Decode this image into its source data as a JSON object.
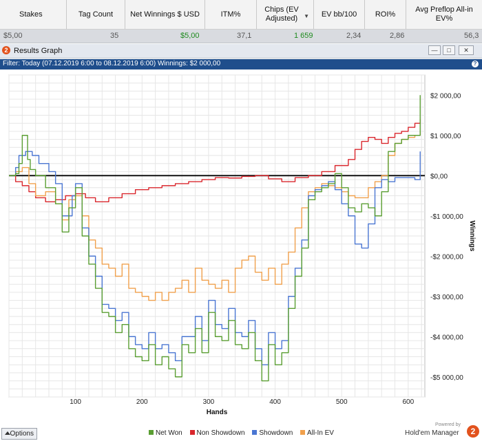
{
  "table": {
    "headers": [
      "Stakes",
      "Tag Count",
      "Net Winnings $ USD",
      "ITM%",
      "Chips (EV Adjusted)",
      "EV bb/100",
      "ROI%",
      "Avg Preflop All-in EV%"
    ],
    "values": [
      "$5,00",
      "35",
      "$5,00",
      "37,1",
      "1 659",
      "2,34",
      "2,86",
      "56,3"
    ]
  },
  "window": {
    "title": "Results Graph",
    "filter_text": "Filter: Today (07.12.2019 6:00 to 08.12.2019 6:00)  Winnings: $2 000,00"
  },
  "bottom": {
    "options_label": "Options",
    "powered_by": "Powered by",
    "brand": "Hold'em Manager"
  },
  "colors": {
    "net_won": "#5a9e32",
    "non_showdown": "#d9262c",
    "showdown": "#4a76d2",
    "all_in_ev": "#f0a04c",
    "filter_bar": "#1f4e8c"
  },
  "chart_data": {
    "type": "line",
    "xlabel": "Hands",
    "ylabel": "Winnings",
    "xlim": [
      0,
      625
    ],
    "ylim": [
      -5500,
      2500
    ],
    "xticks": [
      100,
      200,
      300,
      400,
      500,
      600
    ],
    "yticks": [
      2000,
      1000,
      0,
      -1000,
      -2000,
      -3000,
      -4000,
      -5000
    ],
    "ytick_labels": [
      "$2 000,00",
      "$1 000,00",
      "$0,00",
      "-$1 000,00",
      "-$2 000,00",
      "-$3 000,00",
      "-$4 000,00",
      "-$5 000,00"
    ],
    "grid": true,
    "legend_position": "bottom",
    "series": [
      {
        "name": "Net Won",
        "x": [
          0,
          10,
          15,
          20,
          28,
          32,
          40,
          55,
          70,
          80,
          90,
          100,
          110,
          120,
          130,
          140,
          150,
          160,
          170,
          180,
          190,
          200,
          210,
          220,
          230,
          240,
          250,
          260,
          270,
          280,
          290,
          300,
          310,
          320,
          330,
          340,
          350,
          360,
          370,
          380,
          390,
          400,
          410,
          420,
          430,
          440,
          450,
          460,
          470,
          480,
          490,
          500,
          510,
          520,
          530,
          540,
          550,
          560,
          570,
          580,
          590,
          600,
          610,
          618
        ],
        "y": [
          0,
          50,
          300,
          1000,
          400,
          150,
          0,
          -300,
          -700,
          -1400,
          -800,
          -300,
          -1500,
          -2200,
          -2800,
          -3400,
          -3500,
          -3900,
          -3700,
          -4300,
          -4500,
          -4600,
          -4200,
          -4700,
          -4500,
          -4800,
          -5000,
          -4200,
          -4400,
          -3800,
          -4400,
          -3400,
          -4000,
          -4100,
          -3600,
          -4200,
          -4300,
          -3900,
          -4600,
          -5100,
          -4200,
          -4700,
          -4400,
          -3300,
          -2500,
          -1800,
          -600,
          -400,
          -300,
          -200,
          50,
          -300,
          -800,
          -900,
          -700,
          -800,
          -1000,
          -400,
          600,
          800,
          900,
          1000,
          1000,
          2000
        ]
      },
      {
        "name": "Non Showdown",
        "x": [
          0,
          10,
          20,
          30,
          40,
          55,
          70,
          85,
          100,
          115,
          130,
          150,
          170,
          190,
          210,
          230,
          250,
          270,
          290,
          310,
          330,
          350,
          370,
          390,
          410,
          430,
          450,
          470,
          490,
          510,
          520,
          530,
          540,
          550,
          560,
          570,
          580,
          590,
          600,
          610,
          618
        ],
        "y": [
          0,
          -150,
          -250,
          -400,
          -550,
          -650,
          -600,
          -500,
          -450,
          -550,
          -650,
          -550,
          -450,
          -350,
          -300,
          -250,
          -200,
          -150,
          -100,
          -50,
          -60,
          -20,
          0,
          -80,
          -150,
          -50,
          0,
          100,
          250,
          400,
          650,
          850,
          950,
          900,
          800,
          950,
          1050,
          1100,
          1200,
          1300,
          1400
        ]
      },
      {
        "name": "Showdown",
        "x": [
          0,
          10,
          15,
          25,
          35,
          45,
          60,
          70,
          80,
          95,
          100,
          110,
          120,
          130,
          140,
          150,
          160,
          170,
          180,
          190,
          200,
          210,
          220,
          230,
          240,
          250,
          260,
          270,
          280,
          290,
          300,
          310,
          320,
          330,
          340,
          350,
          360,
          370,
          380,
          390,
          400,
          410,
          420,
          430,
          440,
          450,
          460,
          470,
          480,
          490,
          500,
          510,
          520,
          530,
          540,
          550,
          560,
          570,
          580,
          590,
          600,
          610,
          618
        ],
        "y": [
          0,
          200,
          500,
          600,
          500,
          300,
          100,
          -200,
          -1000,
          -500,
          -200,
          -1300,
          -2000,
          -2500,
          -3200,
          -3300,
          -3600,
          -3400,
          -4000,
          -4200,
          -4300,
          -3900,
          -4300,
          -4200,
          -4400,
          -4600,
          -4000,
          -4000,
          -3500,
          -4100,
          -3100,
          -3700,
          -3800,
          -3300,
          -3900,
          -4000,
          -3600,
          -4300,
          -4700,
          -3900,
          -4300,
          -4100,
          -3000,
          -2300,
          -1600,
          -500,
          -350,
          -250,
          -150,
          -350,
          -700,
          -1000,
          -1700,
          -1800,
          -1200,
          -300,
          -100,
          -150,
          -50,
          -50,
          -50,
          -100,
          600
        ]
      },
      {
        "name": "All-In EV",
        "x": [
          0,
          10,
          20,
          30,
          40,
          55,
          70,
          80,
          90,
          100,
          110,
          120,
          130,
          140,
          150,
          160,
          170,
          180,
          190,
          200,
          210,
          220,
          230,
          240,
          250,
          260,
          270,
          280,
          290,
          300,
          310,
          320,
          330,
          340,
          350,
          360,
          370,
          380,
          390,
          400,
          410,
          420,
          430,
          440,
          450,
          460,
          470,
          480,
          490,
          500,
          510,
          520,
          530,
          540,
          550,
          560,
          570,
          580,
          590,
          600,
          610,
          618
        ],
        "y": [
          0,
          100,
          200,
          -200,
          -500,
          -400,
          -700,
          -1100,
          -600,
          -500,
          -1000,
          -1600,
          -1800,
          -2200,
          -2300,
          -2500,
          -2200,
          -2800,
          -2900,
          -3000,
          -3100,
          -2900,
          -3100,
          -2900,
          -2800,
          -2600,
          -2900,
          -2300,
          -2600,
          -2700,
          -2800,
          -2600,
          -2900,
          -2300,
          -2100,
          -2000,
          -2400,
          -2600,
          -2300,
          -2700,
          -2200,
          -1900,
          -1300,
          -800,
          -400,
          -300,
          -200,
          -250,
          -300,
          -400,
          -500,
          -550,
          -550,
          -300,
          -150,
          0,
          500,
          800,
          900,
          950,
          1000,
          1100
        ]
      }
    ]
  }
}
